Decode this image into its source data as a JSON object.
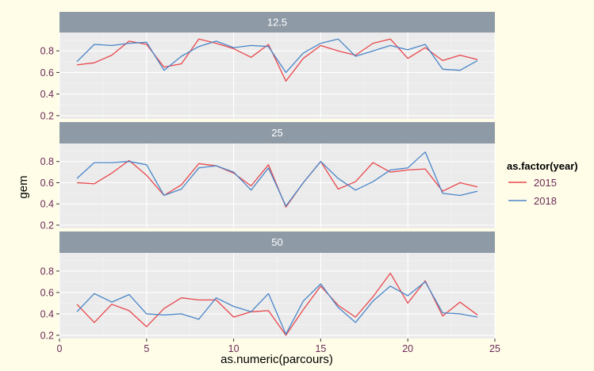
{
  "chart_data": {
    "type": "line",
    "xlabel": "as.numeric(parcours)",
    "ylabel": "gem",
    "xlim": [
      0,
      25
    ],
    "ylim": [
      0.17,
      0.97
    ],
    "x_ticks": [
      "0",
      "5",
      "10",
      "15",
      "20",
      "25"
    ],
    "y_ticks": [
      "0.2",
      "0.4",
      "0.6",
      "0.8"
    ],
    "grid": true,
    "legend": {
      "title": "as.factor(year)",
      "position": "right"
    },
    "x": [
      1,
      2,
      3,
      4,
      5,
      6,
      7,
      8,
      9,
      10,
      11,
      12,
      13,
      14,
      15,
      16,
      17,
      18,
      19,
      20,
      21,
      22,
      23,
      24
    ],
    "series_colors": [
      "#e8474c",
      "#4a86c8"
    ],
    "panels": [
      {
        "label": "12.5",
        "series": [
          {
            "name": "2015",
            "values": [
              0.67,
              0.69,
              0.76,
              0.89,
              0.86,
              0.65,
              0.68,
              0.91,
              0.87,
              0.82,
              0.74,
              0.86,
              0.52,
              0.73,
              0.85,
              0.8,
              0.76,
              0.87,
              0.91,
              0.73,
              0.83,
              0.71,
              0.76,
              0.72
            ]
          },
          {
            "name": "2018",
            "values": [
              0.7,
              0.86,
              0.85,
              0.87,
              0.88,
              0.62,
              0.75,
              0.84,
              0.89,
              0.83,
              0.85,
              0.84,
              0.6,
              0.78,
              0.87,
              0.91,
              0.75,
              0.8,
              0.85,
              0.81,
              0.86,
              0.63,
              0.62,
              0.71
            ]
          }
        ]
      },
      {
        "label": "25",
        "series": [
          {
            "name": "2015",
            "values": [
              0.6,
              0.59,
              0.69,
              0.81,
              0.67,
              0.48,
              0.58,
              0.78,
              0.76,
              0.69,
              0.57,
              0.77,
              0.37,
              0.6,
              0.8,
              0.54,
              0.61,
              0.79,
              0.7,
              0.72,
              0.73,
              0.52,
              0.6,
              0.56
            ]
          },
          {
            "name": "2018",
            "values": [
              0.64,
              0.79,
              0.79,
              0.8,
              0.77,
              0.48,
              0.54,
              0.74,
              0.76,
              0.7,
              0.53,
              0.74,
              0.38,
              0.6,
              0.8,
              0.64,
              0.53,
              0.61,
              0.72,
              0.74,
              0.89,
              0.5,
              0.48,
              0.52
            ]
          }
        ]
      },
      {
        "label": "50",
        "series": [
          {
            "name": "2015",
            "values": [
              0.49,
              0.32,
              0.49,
              0.43,
              0.28,
              0.45,
              0.55,
              0.53,
              0.53,
              0.37,
              0.42,
              0.43,
              0.2,
              0.44,
              0.66,
              0.48,
              0.37,
              0.56,
              0.78,
              0.5,
              0.71,
              0.38,
              0.51,
              0.39
            ]
          },
          {
            "name": "2018",
            "values": [
              0.42,
              0.59,
              0.51,
              0.58,
              0.4,
              0.39,
              0.4,
              0.35,
              0.55,
              0.47,
              0.42,
              0.59,
              0.21,
              0.52,
              0.68,
              0.46,
              0.32,
              0.52,
              0.66,
              0.57,
              0.7,
              0.41,
              0.4,
              0.37
            ]
          }
        ]
      }
    ]
  }
}
